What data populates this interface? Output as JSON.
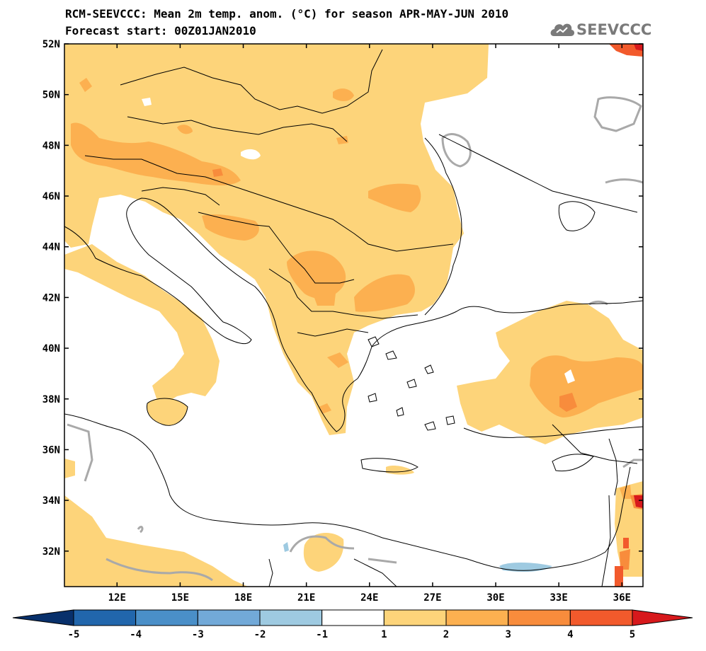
{
  "title_line1": "RCM-SEEVCCC: Mean 2m temp. anom. (°C) for season APR-MAY-JUN 2010",
  "title_line2": "Forecast start: 00Z01JAN2010",
  "logo_text": "SEEVCCC",
  "logo_icon": "cloud-icon",
  "map": {
    "lon_range": [
      9.5,
      37.0
    ],
    "lat_range": [
      30.6,
      52.0
    ],
    "lat_ticks": [
      {
        "value": 52,
        "label": "52N"
      },
      {
        "value": 50,
        "label": "50N"
      },
      {
        "value": 48,
        "label": "48N"
      },
      {
        "value": 46,
        "label": "46N"
      },
      {
        "value": 44,
        "label": "44N"
      },
      {
        "value": 42,
        "label": "42N"
      },
      {
        "value": 40,
        "label": "40N"
      },
      {
        "value": 38,
        "label": "38N"
      },
      {
        "value": 36,
        "label": "36N"
      },
      {
        "value": 34,
        "label": "34N"
      },
      {
        "value": 32,
        "label": "32N"
      }
    ],
    "lon_ticks": [
      {
        "value": 12,
        "label": "12E"
      },
      {
        "value": 15,
        "label": "15E"
      },
      {
        "value": 18,
        "label": "18E"
      },
      {
        "value": 21,
        "label": "21E"
      },
      {
        "value": 24,
        "label": "24E"
      },
      {
        "value": 27,
        "label": "27E"
      },
      {
        "value": 30,
        "label": "30E"
      },
      {
        "value": 33,
        "label": "33E"
      },
      {
        "value": 36,
        "label": "36E"
      }
    ]
  },
  "colorbar": {
    "bins": [
      {
        "color": "#08306b"
      },
      {
        "color": "#2166ac"
      },
      {
        "color": "#4a8fc8"
      },
      {
        "color": "#72a9d8"
      },
      {
        "color": "#9ecae1"
      },
      {
        "color": "#ffffff"
      },
      {
        "color": "#fdd47a"
      },
      {
        "color": "#fcb050"
      },
      {
        "color": "#f88c3c"
      },
      {
        "color": "#f25a2c"
      },
      {
        "color": "#d7191c"
      }
    ],
    "labels": [
      "-5",
      "-4",
      "-3",
      "-2",
      "-1",
      "1",
      "2",
      "3",
      "4",
      "5"
    ]
  },
  "colors": {
    "anom_1_2": "#fdd47a",
    "anom_2_3": "#fcb050",
    "anom_3_4": "#f88c3c",
    "anom_4_5": "#f25a2c",
    "anom_gt_5": "#d7191c",
    "anom_neg_1_2": "#9ecae1",
    "contour": "#a9a9a9"
  }
}
